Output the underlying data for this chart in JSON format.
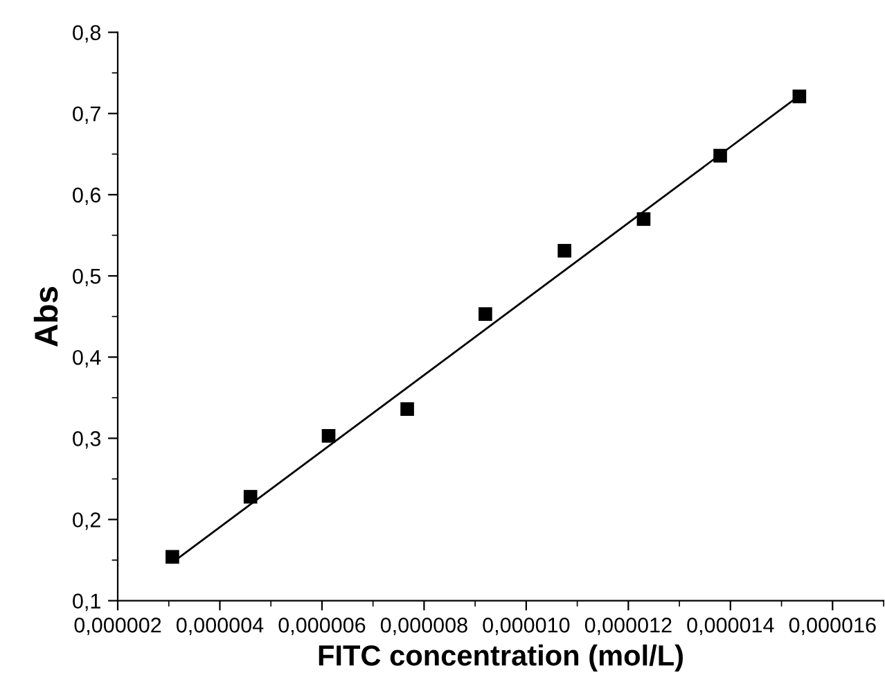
{
  "chart_data": {
    "type": "scatter",
    "xlabel": "FITC concentration (mol/L)",
    "ylabel": "Abs",
    "series": [
      {
        "color": "#000000",
        "marker": "square",
        "x": [
          3.07e-06,
          4.6e-06,
          6.13e-06,
          7.67e-06,
          9.2e-06,
          1.075e-05,
          1.23e-05,
          1.38e-05,
          1.535e-05
        ],
        "values": [
          0.154,
          0.228,
          0.303,
          0.336,
          0.453,
          0.531,
          0.57,
          0.648,
          0.721
        ]
      },
      {
        "type": "line",
        "color": "#000000",
        "line_style": "solid",
        "x": [
          3.07e-06,
          1.535e-05
        ],
        "values": [
          0.147,
          0.722
        ]
      }
    ],
    "xlim": [
      2e-06,
      1.7e-05
    ],
    "xticks": [
      {
        "value": 2e-06,
        "label": "0,000002"
      },
      {
        "value": 4e-06,
        "label": "0,000004"
      },
      {
        "value": 6e-06,
        "label": "0,000006"
      },
      {
        "value": 8e-06,
        "label": "0,000008"
      },
      {
        "value": 1e-05,
        "label": "0,000010"
      },
      {
        "value": 1.2e-05,
        "label": "0,000012"
      },
      {
        "value": 1.4e-05,
        "label": "0,000014"
      },
      {
        "value": 1.6e-05,
        "label": "0,000016"
      }
    ],
    "ylim": [
      0.1,
      0.8
    ],
    "yticks": [
      {
        "value": 0.1,
        "label": "0,1"
      },
      {
        "value": 0.2,
        "label": "0,2"
      },
      {
        "value": 0.3,
        "label": "0,3"
      },
      {
        "value": 0.4,
        "label": "0,4"
      },
      {
        "value": 0.5,
        "label": "0,5"
      },
      {
        "value": 0.6,
        "label": "0,6"
      },
      {
        "value": 0.7,
        "label": "0,7"
      },
      {
        "value": 0.8,
        "label": "0,8"
      }
    ],
    "grid": false,
    "legend": false
  }
}
